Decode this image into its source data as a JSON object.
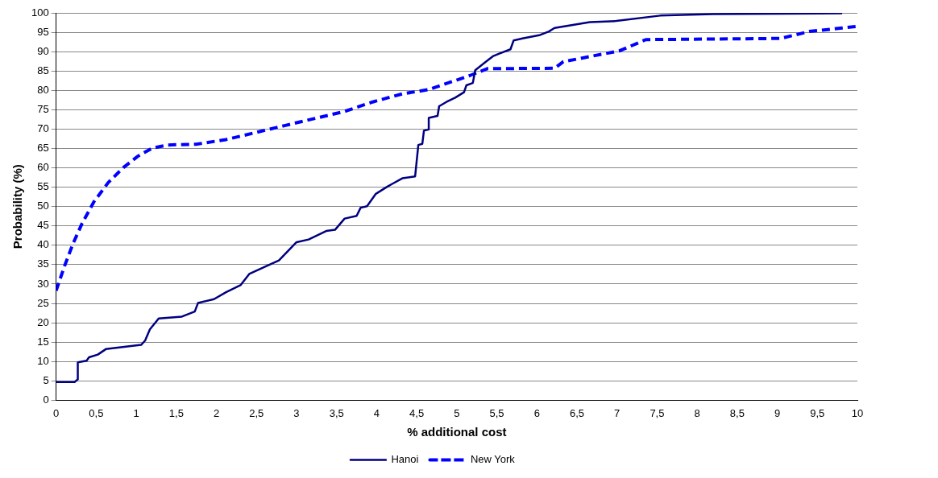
{
  "chart_data": {
    "type": "line",
    "xlabel": "% additional cost",
    "ylabel": "Probability (%)",
    "xlim": [
      0,
      10
    ],
    "ylim": [
      0,
      100
    ],
    "xticks": [
      0,
      {
        "value": 0.5,
        "label": "0,5"
      },
      1,
      {
        "value": 1.5,
        "label": "1,5"
      },
      2,
      {
        "value": 2.5,
        "label": "2,5"
      },
      3,
      {
        "value": 3.5,
        "label": "3,5"
      },
      4,
      {
        "value": 4.5,
        "label": "4,5"
      },
      5,
      {
        "value": 5.5,
        "label": "5,5"
      },
      6,
      {
        "value": 6.5,
        "label": "6,5"
      },
      7,
      {
        "value": 7.5,
        "label": "7,5"
      },
      8,
      {
        "value": 8.5,
        "label": "8,5"
      },
      9,
      {
        "value": 9.5,
        "label": "9,5"
      },
      10
    ],
    "yticks": [
      0,
      5,
      10,
      15,
      20,
      25,
      30,
      35,
      40,
      45,
      50,
      55,
      60,
      65,
      70,
      75,
      80,
      85,
      90,
      95,
      100
    ],
    "grid": "y",
    "legend": "bottom",
    "marker": "none",
    "series": [
      {
        "name": "Hanoi",
        "color": "#000080",
        "line_style": "solid",
        "x": [
          0,
          0.23,
          0.27,
          0.27,
          0.38,
          0.41,
          0.52,
          0.62,
          1.06,
          1.11,
          1.17,
          1.28,
          1.57,
          1.73,
          1.77,
          1.97,
          2.12,
          2.3,
          2.41,
          2.63,
          2.78,
          3.0,
          3.15,
          3.37,
          3.48,
          3.6,
          3.75,
          3.8,
          3.88,
          3.99,
          4.13,
          4.19,
          4.32,
          4.48,
          4.52,
          4.57,
          4.59,
          4.65,
          4.65,
          4.76,
          4.78,
          4.87,
          4.98,
          5.09,
          5.12,
          5.2,
          5.23,
          5.34,
          5.45,
          5.53,
          5.67,
          5.71,
          5.82,
          6.04,
          6.15,
          6.22,
          6.66,
          6.99,
          7.54,
          8.2,
          9.81
        ],
        "values": [
          4.7,
          4.7,
          5.4,
          9.8,
          10.2,
          11.1,
          11.8,
          13.2,
          14.3,
          15.4,
          18.3,
          21.1,
          21.6,
          22.9,
          25.1,
          26.1,
          27.9,
          29.7,
          32.6,
          34.7,
          36.1,
          40.8,
          41.5,
          43.7,
          44,
          46.9,
          47.6,
          49.7,
          50.1,
          53.3,
          55.1,
          55.8,
          57.3,
          57.8,
          65.9,
          66.2,
          69.6,
          69.9,
          72.9,
          73.4,
          75.9,
          77,
          78.1,
          79.5,
          81.3,
          81.9,
          85.2,
          87,
          88.8,
          89.5,
          90.6,
          92.9,
          93.4,
          94.3,
          95.2,
          96.1,
          97.6,
          97.9,
          99.3,
          99.7,
          99.9
        ]
      },
      {
        "name": "New York",
        "color": "#0000ff",
        "line_style": "dashed",
        "x": [
          0,
          0.1,
          0.21,
          0.32,
          0.47,
          0.65,
          0.84,
          1.02,
          1.2,
          1.39,
          1.75,
          2.12,
          2.49,
          2.85,
          3.22,
          3.59,
          3.95,
          4.32,
          4.65,
          5.16,
          5.38,
          6.22,
          6.33,
          7.03,
          7.36,
          9.04,
          9.4,
          9.81,
          10
        ],
        "values": [
          28.3,
          34.4,
          40.4,
          45.5,
          51.2,
          56.2,
          60.1,
          63,
          65.1,
          65.9,
          66.1,
          67.3,
          69.1,
          70.9,
          72.7,
          74.5,
          77,
          79.1,
          80.2,
          83.8,
          85.6,
          85.7,
          87.4,
          90.2,
          93.1,
          93.4,
          95.2,
          96.1,
          96.5
        ]
      }
    ]
  }
}
